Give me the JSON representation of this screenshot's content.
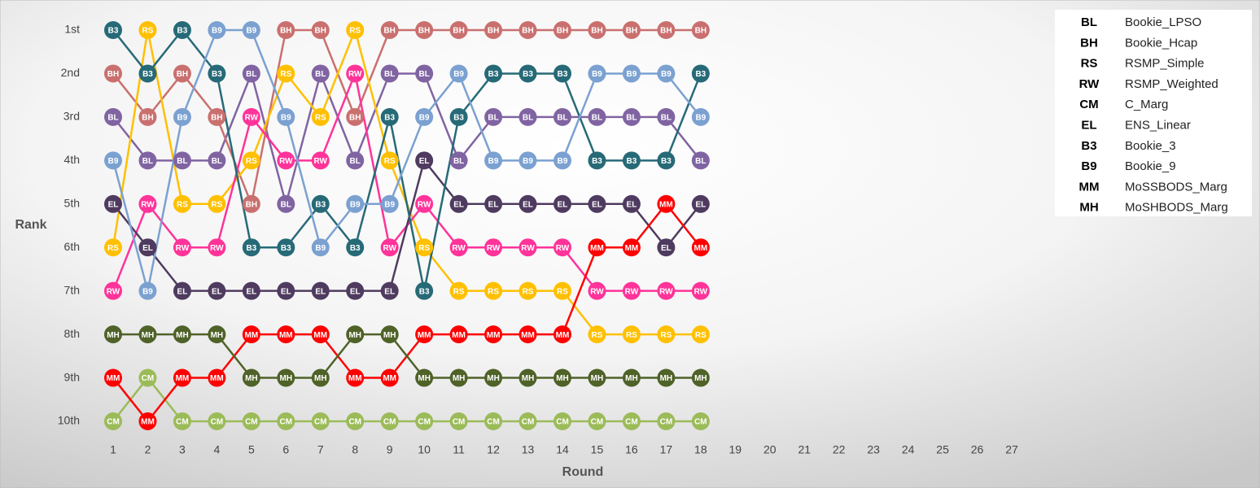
{
  "chart_data": {
    "type": "bump",
    "x_label": "Round",
    "y_label": "Rank",
    "x": [
      1,
      2,
      3,
      4,
      5,
      6,
      7,
      8,
      9,
      10,
      11,
      12,
      13,
      14,
      15,
      16,
      17,
      18
    ],
    "xlim": [
      1,
      27
    ],
    "xticks": [
      1,
      2,
      3,
      4,
      5,
      6,
      7,
      8,
      9,
      10,
      11,
      12,
      13,
      14,
      15,
      16,
      17,
      18,
      19,
      20,
      21,
      22,
      23,
      24,
      25,
      26,
      27
    ],
    "ylim": [
      1,
      10
    ],
    "y_reversed": true,
    "yticks": [
      {
        "value": 1,
        "label": "1st"
      },
      {
        "value": 2,
        "label": "2nd"
      },
      {
        "value": 3,
        "label": "3rd"
      },
      {
        "value": 4,
        "label": "4th"
      },
      {
        "value": 5,
        "label": "5th"
      },
      {
        "value": 6,
        "label": "6th"
      },
      {
        "value": 7,
        "label": "7th"
      },
      {
        "value": 8,
        "label": "8th"
      },
      {
        "value": 9,
        "label": "9th"
      },
      {
        "value": 10,
        "label": "10th"
      }
    ],
    "legend_position": "upper right",
    "series": [
      {
        "code": "BL",
        "name": "Bookie_LPSO",
        "color": "#8064a2",
        "values": [
          3,
          4,
          4,
          4,
          2,
          5,
          2,
          4,
          2,
          2,
          4,
          3,
          3,
          3,
          3,
          3,
          3,
          4
        ]
      },
      {
        "code": "BH",
        "name": "Bookie_Hcap",
        "color": "#c9706f",
        "values": [
          2,
          3,
          2,
          3,
          5,
          1,
          1,
          3,
          1,
          1,
          1,
          1,
          1,
          1,
          1,
          1,
          1,
          1
        ]
      },
      {
        "code": "RS",
        "name": "RSMP_Simple",
        "color": "#ffc000",
        "values": [
          6,
          1,
          5,
          5,
          4,
          2,
          3,
          1,
          4,
          6,
          7,
          7,
          7,
          7,
          8,
          8,
          8,
          8
        ]
      },
      {
        "code": "RW",
        "name": "RSMP_Weighted",
        "color": "#ff3399",
        "values": [
          7,
          5,
          6,
          6,
          3,
          4,
          4,
          2,
          6,
          5,
          6,
          6,
          6,
          6,
          7,
          7,
          7,
          7
        ]
      },
      {
        "code": "CM",
        "name": "C_Marg",
        "color": "#9bbb59",
        "values": [
          10,
          9,
          10,
          10,
          10,
          10,
          10,
          10,
          10,
          10,
          10,
          10,
          10,
          10,
          10,
          10,
          10,
          10
        ]
      },
      {
        "code": "EL",
        "name": "ENS_Linear",
        "color": "#4f3b5f",
        "values": [
          5,
          6,
          7,
          7,
          7,
          7,
          7,
          7,
          7,
          4,
          5,
          5,
          5,
          5,
          5,
          5,
          6,
          5
        ]
      },
      {
        "code": "B3",
        "name": "Bookie_3",
        "color": "#276a77",
        "values": [
          1,
          2,
          1,
          2,
          6,
          6,
          5,
          6,
          3,
          7,
          3,
          2,
          2,
          2,
          4,
          4,
          4,
          2
        ]
      },
      {
        "code": "B9",
        "name": "Bookie_9",
        "color": "#7ba1d1",
        "values": [
          4,
          7,
          3,
          1,
          1,
          3,
          6,
          5,
          5,
          3,
          2,
          4,
          4,
          4,
          2,
          2,
          2,
          3
        ]
      },
      {
        "code": "MM",
        "name": "MoSSBODS_Marg",
        "color": "#ff0000",
        "values": [
          9,
          10,
          9,
          9,
          8,
          8,
          8,
          9,
          9,
          8,
          8,
          8,
          8,
          8,
          6,
          6,
          5,
          6
        ]
      },
      {
        "code": "MH",
        "name": "MoSHBODS_Marg",
        "color": "#4f6228",
        "values": [
          8,
          8,
          8,
          8,
          9,
          9,
          9,
          8,
          8,
          9,
          9,
          9,
          9,
          9,
          9,
          9,
          9,
          9
        ]
      }
    ]
  }
}
